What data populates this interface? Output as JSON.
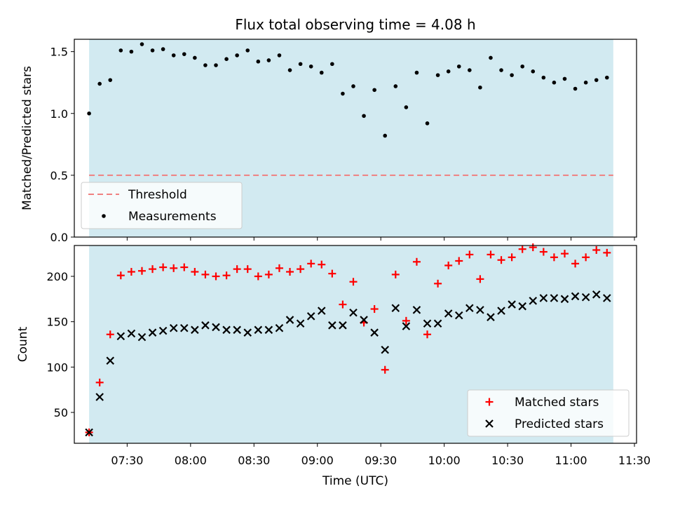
{
  "title": "Flux total observing time = 4.08 h",
  "colors": {
    "shade": "#add8e6",
    "threshold": "#f08080",
    "matched": "#ff0000",
    "predicted": "#000000",
    "measurements": "#000000"
  },
  "chart_data": [
    {
      "type": "scatter",
      "ylabel": "Matched/Predicted stars",
      "ylim": [
        0,
        1.6
      ],
      "yticks": [
        "0.0",
        "0.5",
        "1.0",
        "1.5"
      ],
      "xlim": [
        "07:05",
        "11:31"
      ],
      "shaded_range": [
        "07:12",
        "11:20"
      ],
      "grid": false,
      "legend_position": "lower-left",
      "x": [
        "07:12",
        "07:17",
        "07:22",
        "07:27",
        "07:32",
        "07:37",
        "07:42",
        "07:47",
        "07:52",
        "07:57",
        "08:02",
        "08:07",
        "08:12",
        "08:17",
        "08:22",
        "08:27",
        "08:32",
        "08:37",
        "08:42",
        "08:47",
        "08:52",
        "08:57",
        "09:02",
        "09:07",
        "09:12",
        "09:17",
        "09:22",
        "09:27",
        "09:32",
        "09:37",
        "09:42",
        "09:47",
        "09:52",
        "09:57",
        "10:02",
        "10:07",
        "10:12",
        "10:17",
        "10:22",
        "10:27",
        "10:32",
        "10:37",
        "10:42",
        "10:47",
        "10:52",
        "10:57",
        "11:02",
        "11:07",
        "11:12",
        "11:17"
      ],
      "series": [
        {
          "name": "Threshold",
          "style": "dashed-line",
          "x": [
            "07:12",
            "11:20"
          ],
          "values": [
            0.5,
            0.5
          ]
        },
        {
          "name": "Measurements",
          "style": "dot",
          "values": [
            1.0,
            1.24,
            1.27,
            1.51,
            1.5,
            1.56,
            1.51,
            1.52,
            1.47,
            1.48,
            1.45,
            1.39,
            1.39,
            1.44,
            1.47,
            1.51,
            1.42,
            1.43,
            1.47,
            1.35,
            1.4,
            1.38,
            1.33,
            1.4,
            1.16,
            1.22,
            0.98,
            1.19,
            0.82,
            1.22,
            1.05,
            1.33,
            0.92,
            1.31,
            1.34,
            1.38,
            1.35,
            1.21,
            1.45,
            1.35,
            1.31,
            1.38,
            1.34,
            1.29,
            1.25,
            1.28,
            1.2,
            1.25,
            1.27,
            1.29
          ]
        }
      ]
    },
    {
      "type": "scatter",
      "ylabel": "Count",
      "xlabel": "Time (UTC)",
      "ylim": [
        16,
        234
      ],
      "yticks": [
        "50",
        "100",
        "150",
        "200"
      ],
      "xlim": [
        "07:05",
        "11:31"
      ],
      "xticks": [
        "07:30",
        "08:00",
        "08:30",
        "09:00",
        "09:30",
        "10:00",
        "10:30",
        "11:00",
        "11:30"
      ],
      "shaded_range": [
        "07:12",
        "11:20"
      ],
      "grid": false,
      "legend_position": "lower-right",
      "x": [
        "07:12",
        "07:17",
        "07:22",
        "07:27",
        "07:32",
        "07:37",
        "07:42",
        "07:47",
        "07:52",
        "07:57",
        "08:02",
        "08:07",
        "08:12",
        "08:17",
        "08:22",
        "08:27",
        "08:32",
        "08:37",
        "08:42",
        "08:47",
        "08:52",
        "08:57",
        "09:02",
        "09:07",
        "09:12",
        "09:17",
        "09:22",
        "09:27",
        "09:32",
        "09:37",
        "09:42",
        "09:47",
        "09:52",
        "09:57",
        "10:02",
        "10:07",
        "10:12",
        "10:17",
        "10:22",
        "10:27",
        "10:32",
        "10:37",
        "10:42",
        "10:47",
        "10:52",
        "10:57",
        "11:02",
        "11:07",
        "11:12",
        "11:17"
      ],
      "series": [
        {
          "name": "Matched stars",
          "style": "plus",
          "values": [
            28,
            83,
            136,
            201,
            205,
            206,
            208,
            210,
            209,
            210,
            205,
            202,
            200,
            201,
            208,
            208,
            200,
            202,
            209,
            205,
            208,
            214,
            213,
            203,
            169,
            194,
            149,
            164,
            97,
            202,
            151,
            216,
            136,
            192,
            212,
            217,
            224,
            197,
            224,
            218,
            221,
            230,
            232,
            227,
            221,
            225,
            214,
            221,
            229,
            226
          ]
        },
        {
          "name": "Predicted stars",
          "style": "x",
          "values": [
            28,
            67,
            107,
            134,
            137,
            133,
            138,
            140,
            143,
            143,
            141,
            146,
            144,
            141,
            141,
            138,
            141,
            141,
            143,
            152,
            148,
            156,
            162,
            146,
            146,
            160,
            152,
            138,
            119,
            165,
            145,
            163,
            148,
            148,
            159,
            157,
            165,
            163,
            155,
            162,
            169,
            167,
            173,
            176,
            176,
            175,
            178,
            177,
            180,
            176
          ]
        }
      ]
    }
  ]
}
